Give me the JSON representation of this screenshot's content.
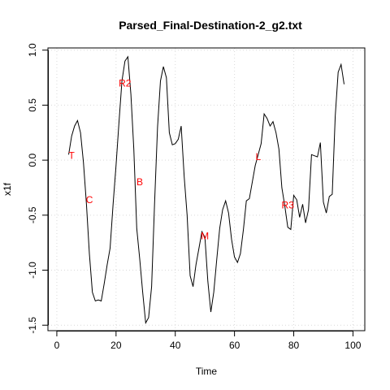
{
  "chart_data": {
    "type": "line",
    "title": "Parsed_Final-Destination-2_g2.txt",
    "xlabel": "Time",
    "ylabel": "x1f",
    "xlim": [
      -3,
      104
    ],
    "ylim": [
      -1.55,
      1.02
    ],
    "xticks": [
      0,
      20,
      40,
      60,
      80,
      100
    ],
    "yticks": [
      -1.5,
      -1.0,
      -0.5,
      0.0,
      0.5,
      1.0
    ],
    "xtick_labels": [
      "0",
      "20",
      "40",
      "60",
      "80",
      "100"
    ],
    "ytick_labels": [
      "-1.5",
      "-1.0",
      "-0.5",
      "0.0",
      "0.5",
      "1.0"
    ],
    "grid": true,
    "series": [
      {
        "x": [
          4,
          5,
          6,
          7,
          8,
          9,
          10,
          11,
          12,
          13,
          14,
          15,
          16,
          17,
          18,
          19,
          20,
          21,
          22,
          23,
          24,
          25,
          26,
          27,
          28,
          29,
          30,
          31,
          32,
          33,
          34,
          35,
          36,
          37,
          38,
          39,
          40,
          41,
          42,
          43,
          44,
          45,
          46,
          47,
          48,
          49,
          50,
          51,
          52,
          53,
          54,
          55,
          56,
          57,
          58,
          59,
          60,
          61,
          62,
          63,
          64,
          65,
          66,
          67,
          68,
          69,
          70,
          71,
          72,
          73,
          74,
          75,
          76,
          77,
          78,
          79,
          80,
          81,
          82,
          83,
          84,
          85,
          86,
          87,
          88,
          89,
          90,
          91,
          92,
          93,
          94,
          95,
          96,
          97
        ],
        "values": [
          0.05,
          0.22,
          0.31,
          0.36,
          0.25,
          -0.02,
          -0.4,
          -0.85,
          -1.2,
          -1.28,
          -1.27,
          -1.28,
          -1.12,
          -0.95,
          -0.8,
          -0.4,
          -0.05,
          0.35,
          0.72,
          0.9,
          0.94,
          0.6,
          0.1,
          -0.62,
          -0.9,
          -1.2,
          -1.48,
          -1.43,
          -1.15,
          -0.4,
          0.3,
          0.72,
          0.85,
          0.75,
          0.25,
          0.14,
          0.15,
          0.19,
          0.31,
          -0.15,
          -0.5,
          -1.05,
          -1.15,
          -0.95,
          -0.8,
          -0.65,
          -0.7,
          -1.1,
          -1.38,
          -1.2,
          -0.9,
          -0.62,
          -0.45,
          -0.37,
          -0.48,
          -0.72,
          -0.88,
          -0.93,
          -0.85,
          -0.63,
          -0.37,
          -0.35,
          -0.2,
          -0.05,
          0.05,
          0.15,
          0.42,
          0.38,
          0.31,
          0.35,
          0.25,
          0.1,
          -0.25,
          -0.42,
          -0.61,
          -0.63,
          -0.32,
          -0.36,
          -0.52,
          -0.4,
          -0.57,
          -0.45,
          0.05,
          0.04,
          0.03,
          0.16,
          -0.38,
          -0.48,
          -0.33,
          -0.31,
          0.4,
          0.8,
          0.87,
          0.69
        ]
      }
    ],
    "annotations": [
      {
        "text": "T",
        "x": 5,
        "y": 0.04
      },
      {
        "text": "C",
        "x": 11,
        "y": -0.36
      },
      {
        "text": "R2",
        "x": 23,
        "y": 0.7
      },
      {
        "text": "B",
        "x": 28,
        "y": -0.2
      },
      {
        "text": "M",
        "x": 50,
        "y": -0.69
      },
      {
        "text": "L",
        "x": 68,
        "y": 0.03
      },
      {
        "text": "R3",
        "x": 78,
        "y": -0.41
      }
    ]
  }
}
